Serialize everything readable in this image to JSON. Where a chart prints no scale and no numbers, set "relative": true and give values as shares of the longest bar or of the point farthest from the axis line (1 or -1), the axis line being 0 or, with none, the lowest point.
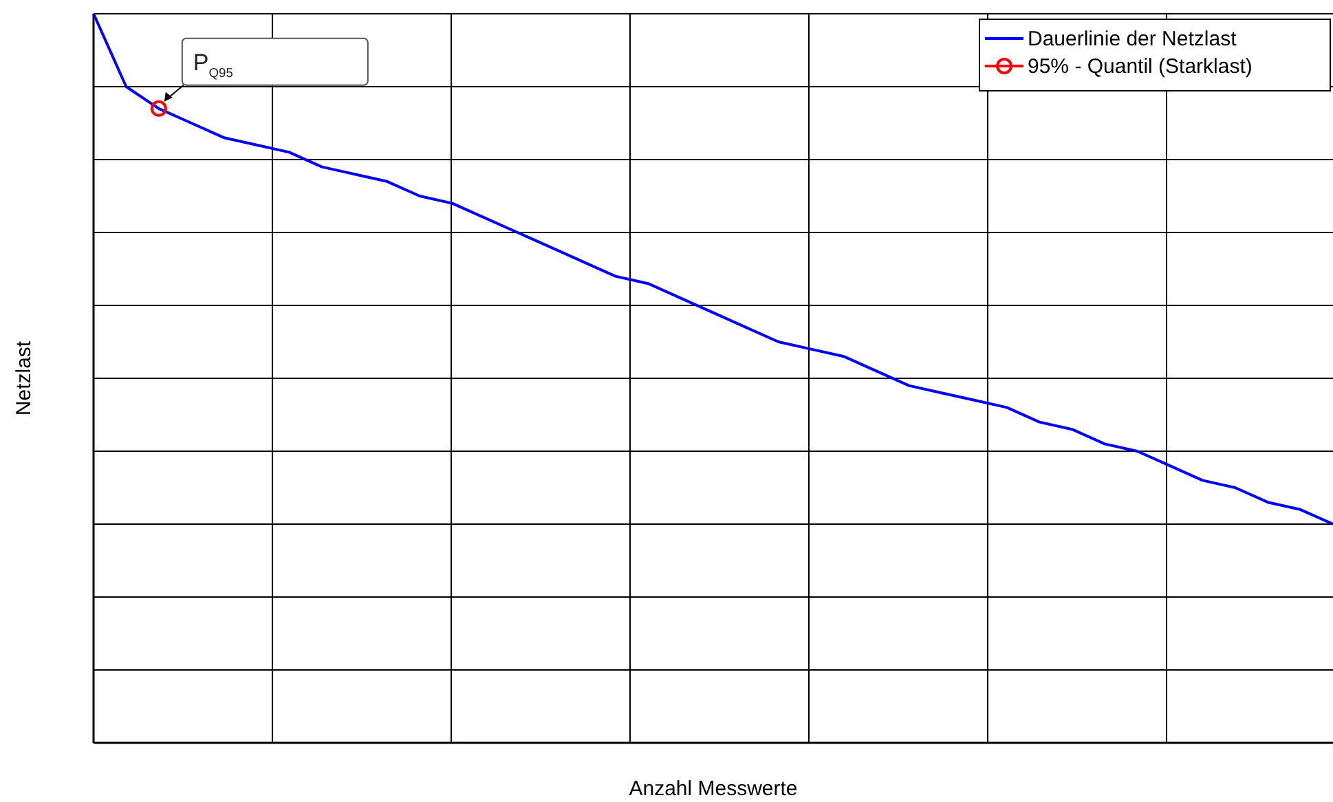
{
  "chart_data": {
    "type": "line",
    "relative": true,
    "xlabel": "Anzahl Messwerte",
    "ylabel": "Netzlast",
    "grid": true,
    "legend": "top right",
    "categories": [
      null,
      null,
      null,
      null,
      null,
      null,
      null,
      null,
      null,
      null,
      null,
      null,
      null,
      null,
      null,
      null,
      null,
      null,
      null,
      null,
      null,
      null,
      null,
      null,
      null,
      null,
      null,
      null,
      null,
      null,
      null,
      null,
      null,
      null,
      null,
      null,
      null,
      null,
      null
    ],
    "series": [
      {
        "name": "Dauerlinie der Netzlast",
        "color": "#0000ff",
        "marker": "none",
        "values": [
          1.0,
          0.9,
          0.87,
          0.85,
          0.83,
          0.82,
          0.81,
          0.79,
          0.78,
          0.77,
          0.75,
          0.74,
          0.72,
          0.7,
          0.68,
          0.66,
          0.64,
          0.63,
          0.61,
          0.59,
          0.57,
          0.55,
          0.54,
          0.53,
          0.51,
          0.49,
          0.48,
          0.47,
          0.46,
          0.44,
          0.43,
          0.41,
          0.4,
          0.38,
          0.36,
          0.35,
          0.33,
          0.32,
          0.3
        ]
      },
      {
        "name": "95% - Quantil (Starklast)",
        "color": "#ff0000",
        "marker": "circle",
        "values": [
          null,
          null,
          0.87,
          null,
          null,
          null,
          null,
          null,
          null,
          null,
          null,
          null,
          null,
          null,
          null,
          null,
          null,
          null,
          null,
          null,
          null,
          null,
          null,
          null,
          null,
          null,
          null,
          null,
          null,
          null,
          null,
          null,
          null,
          null,
          null,
          null,
          null,
          null,
          null
        ]
      }
    ],
    "annotations": [
      "P$_{Q95}$"
    ]
  }
}
